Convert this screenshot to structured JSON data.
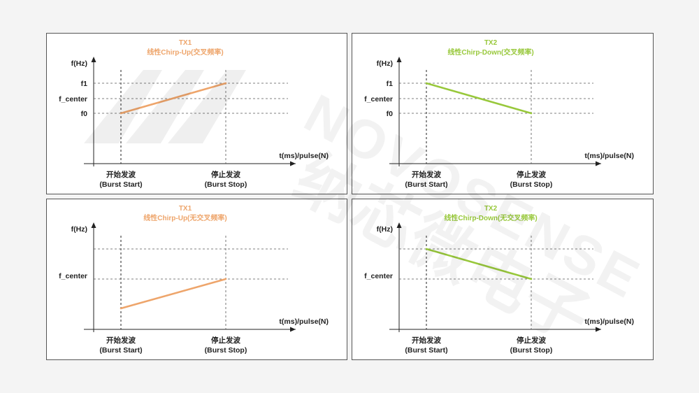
{
  "colors": {
    "up": "#eea56b",
    "down": "#98c83b",
    "axis": "#222222",
    "guide": "#555555",
    "watermark": "#000000"
  },
  "panels": [
    {
      "id": "tl",
      "tx": "TX1",
      "title": "线性Chirp-Up(交叉频率)",
      "direction": "up",
      "y_axis_label": "f(Hz)",
      "y_labels": [
        "f1",
        "f_center",
        "f0"
      ],
      "x_axis_label": "t(ms)/pulse(N)",
      "start_label": [
        "开始发波",
        "(Burst Start)"
      ],
      "stop_label": [
        "停止发波",
        "(Burst Stop)"
      ]
    },
    {
      "id": "tr",
      "tx": "TX2",
      "title": "线性Chirp-Down(交叉频率)",
      "direction": "down",
      "y_axis_label": "f(Hz)",
      "y_labels": [
        "f1",
        "f_center",
        "f0"
      ],
      "x_axis_label": "t(ms)/pulse(N)",
      "start_label": [
        "开始发波",
        "(Burst Start)"
      ],
      "stop_label": [
        "停止发波",
        "(Burst Stop)"
      ]
    },
    {
      "id": "bl",
      "tx": "TX1",
      "title": "线性Chirp-Up(无交叉频率)",
      "direction": "up",
      "y_axis_label": "f(Hz)",
      "y_labels": [
        "f_center"
      ],
      "x_axis_label": "t(ms)/pulse(N)",
      "start_label": [
        "开始发波",
        "(Burst Start)"
      ],
      "stop_label": [
        "停止发波",
        "(Burst Stop)"
      ]
    },
    {
      "id": "br",
      "tx": "TX2",
      "title": "线性Chirp-Down(无交叉频率)",
      "direction": "down",
      "y_axis_label": "f(Hz)",
      "y_labels": [
        "f_center"
      ],
      "x_axis_label": "t(ms)/pulse(N)",
      "start_label": [
        "开始发波",
        "(Burst Start)"
      ],
      "stop_label": [
        "停止发波",
        "(Burst Stop)"
      ]
    }
  ],
  "watermark": {
    "logo_text": "NOVOSENSE",
    "cn_text": "纳芯微电子"
  }
}
